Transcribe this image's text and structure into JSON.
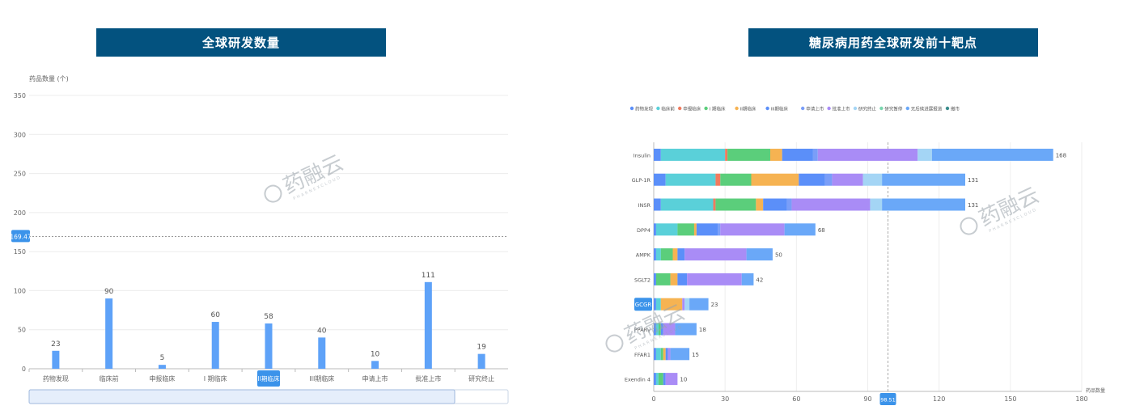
{
  "left_panel": {
    "title": "全球研发数量"
  },
  "right_panel": {
    "title": "糖尿病用药全球研发前十靶点"
  },
  "watermark": {
    "text": "药融云",
    "subtext": "PHARNEXCLOUD"
  },
  "chart_data": [
    {
      "type": "bar",
      "title": "全球研发数量",
      "ylabel": "药品数量 (个)",
      "ylim": [
        0,
        350
      ],
      "yticks": [
        0,
        50,
        100,
        150,
        200,
        250,
        300,
        350
      ],
      "categories": [
        "药物发现",
        "临床前",
        "申报临床",
        "I 期临床",
        "II期临床",
        "III期临床",
        "申请上市",
        "批准上市",
        "研究终止"
      ],
      "values": [
        23,
        90,
        5,
        60,
        58,
        40,
        10,
        111,
        19
      ],
      "highlight_category": "II期临床",
      "reference_line": {
        "value": 169.47,
        "label": "169.47"
      },
      "color": "#5ea2f8",
      "data_zoom": true
    },
    {
      "type": "bar",
      "orientation": "horizontal",
      "stacked": true,
      "title": "糖尿病用药全球研发前十靶点",
      "xlabel": "药品数量",
      "xlim": [
        0,
        180
      ],
      "xticks": [
        0,
        30,
        60,
        90,
        120,
        150,
        180
      ],
      "reference_line": {
        "value": 98.51,
        "label": "98.51"
      },
      "highlight_category": "GCGR",
      "categories": [
        "Insulin",
        "GLP-1R",
        "INSR",
        "DPP4",
        "AMPK",
        "SGLT2",
        "GCGR",
        "PPARγ",
        "FFAR1",
        "Exendin 4"
      ],
      "totals": [
        168,
        131,
        131,
        68,
        50,
        42,
        23,
        18,
        15,
        10
      ],
      "legend": [
        "药物发现",
        "临床前",
        "申报临床",
        "I 期临床",
        "II期临床",
        "III期临床",
        "申请上市",
        "批准上市",
        "研究终止",
        "研究暂停",
        "无后续进展报道",
        "撤市"
      ],
      "series": [
        {
          "name": "药物发现",
          "color": "#5b8ff9",
          "values": [
            3,
            5,
            3,
            1,
            1,
            1,
            1,
            1,
            1,
            1
          ]
        },
        {
          "name": "临床前",
          "color": "#5ad0d9",
          "values": [
            27,
            21,
            22,
            9,
            2,
            0,
            2,
            1,
            2,
            1
          ]
        },
        {
          "name": "申报临床",
          "color": "#f07b5f",
          "values": [
            1,
            2,
            1,
            0,
            0,
            0,
            0,
            0,
            0,
            0
          ]
        },
        {
          "name": "I 期临床",
          "color": "#5bce7b",
          "values": [
            18,
            13,
            17,
            7,
            5,
            6,
            0,
            1,
            1,
            2
          ]
        },
        {
          "name": "II期临床",
          "color": "#f6b352",
          "values": [
            5,
            20,
            3,
            1,
            2,
            3,
            9,
            0,
            1,
            0
          ]
        },
        {
          "name": "III期临床",
          "color": "#5b8ff9",
          "values": [
            13,
            11,
            10,
            9,
            3,
            4,
            0,
            1,
            1,
            1
          ]
        },
        {
          "name": "申请上市",
          "color": "#7a9ef8",
          "values": [
            2,
            3,
            2,
            1,
            0,
            0,
            0,
            0,
            0,
            0
          ]
        },
        {
          "name": "批准上市",
          "color": "#a98cf6",
          "values": [
            42,
            13,
            33,
            27,
            26,
            23,
            1,
            5,
            1,
            5
          ]
        },
        {
          "name": "研究终止",
          "color": "#a4d5f5",
          "values": [
            6,
            8,
            5,
            0,
            0,
            0,
            2,
            0,
            0,
            0
          ]
        },
        {
          "name": "研究暂停",
          "color": "#79d6ae",
          "values": [
            0,
            0,
            0,
            0,
            0,
            0,
            0,
            0,
            0,
            0
          ]
        },
        {
          "name": "无后续进展报道",
          "color": "#6aa8f8",
          "values": [
            51,
            35,
            35,
            13,
            11,
            5,
            8,
            9,
            8,
            0
          ]
        },
        {
          "name": "撤市",
          "color": "#3a8d8d",
          "values": [
            0,
            0,
            0,
            0,
            0,
            0,
            0,
            0,
            0,
            0
          ]
        }
      ]
    }
  ]
}
